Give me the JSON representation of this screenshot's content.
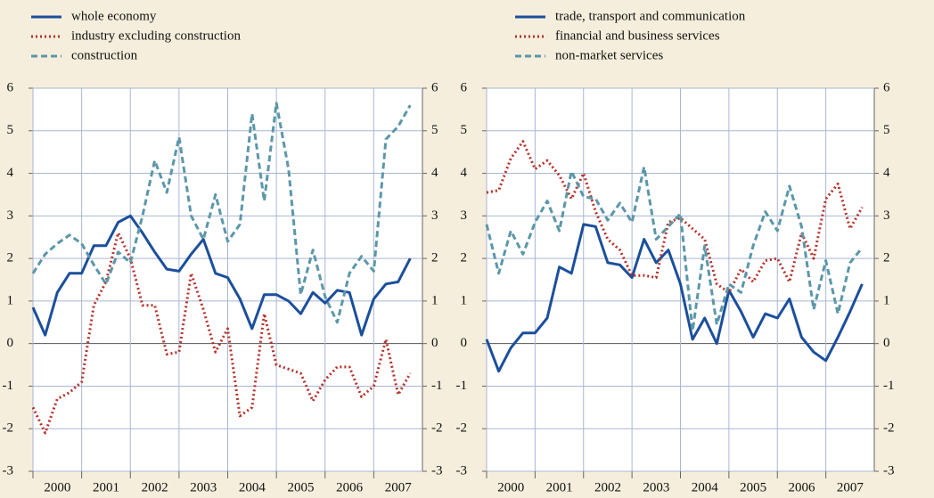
{
  "chart_data": [
    {
      "type": "line",
      "x": [
        2000,
        2000.25,
        2000.5,
        2000.75,
        2001,
        2001.25,
        2001.5,
        2001.75,
        2002,
        2002.25,
        2002.5,
        2002.75,
        2003,
        2003.25,
        2003.5,
        2003.75,
        2004,
        2004.25,
        2004.5,
        2004.75,
        2005,
        2005.25,
        2005.5,
        2005.75,
        2006,
        2006.25,
        2006.5,
        2006.75,
        2007,
        2007.25,
        2007.5,
        2007.75
      ],
      "xlim": [
        2000,
        2008
      ],
      "xticks": [
        2000,
        2001,
        2002,
        2003,
        2004,
        2005,
        2006,
        2007
      ],
      "ylim": [
        -3,
        6
      ],
      "yticks": [
        -3,
        -2,
        -1,
        0,
        1,
        2,
        3,
        4,
        5,
        6
      ],
      "grid": true,
      "series": [
        {
          "name": "whole economy",
          "color": "#1b4f9c",
          "style": "solid",
          "values": [
            0.85,
            0.2,
            1.2,
            1.65,
            1.65,
            2.3,
            2.3,
            2.85,
            3.0,
            2.6,
            2.15,
            1.75,
            1.7,
            2.1,
            2.45,
            1.65,
            1.55,
            1.05,
            0.35,
            1.15,
            1.15,
            1.0,
            0.7,
            1.2,
            0.95,
            1.25,
            1.2,
            0.2,
            1.05,
            1.4,
            1.45,
            2.0
          ]
        },
        {
          "name": "industry excluding construction",
          "color": "#b5322b",
          "style": "dotted",
          "values": [
            -1.5,
            -2.1,
            -1.3,
            -1.15,
            -0.9,
            0.9,
            1.45,
            2.6,
            2.0,
            0.9,
            0.9,
            -0.25,
            -0.2,
            1.65,
            0.8,
            -0.2,
            0.35,
            -1.7,
            -1.5,
            0.7,
            -0.5,
            -0.6,
            -0.7,
            -1.35,
            -0.85,
            -0.55,
            -0.55,
            -1.25,
            -1.0,
            0.1,
            -1.2,
            -0.7
          ]
        },
        {
          "name": "construction",
          "color": "#5b97a8",
          "style": "dashed",
          "values": [
            1.65,
            2.1,
            2.35,
            2.55,
            2.35,
            1.85,
            1.4,
            2.15,
            1.9,
            3.0,
            4.3,
            3.55,
            4.85,
            3.0,
            2.45,
            3.5,
            2.4,
            2.8,
            5.4,
            3.35,
            5.65,
            4.1,
            1.15,
            2.2,
            1.1,
            0.5,
            1.65,
            2.05,
            1.7,
            4.8,
            5.1,
            5.6
          ]
        }
      ]
    },
    {
      "type": "line",
      "x": [
        2000,
        2000.25,
        2000.5,
        2000.75,
        2001,
        2001.25,
        2001.5,
        2001.75,
        2002,
        2002.25,
        2002.5,
        2002.75,
        2003,
        2003.25,
        2003.5,
        2003.75,
        2004,
        2004.25,
        2004.5,
        2004.75,
        2005,
        2005.25,
        2005.5,
        2005.75,
        2006,
        2006.25,
        2006.5,
        2006.75,
        2007,
        2007.25,
        2007.5,
        2007.75
      ],
      "xlim": [
        2000,
        2008
      ],
      "xticks": [
        2000,
        2001,
        2002,
        2003,
        2004,
        2005,
        2006,
        2007
      ],
      "ylim": [
        -3,
        6
      ],
      "yticks": [
        -3,
        -2,
        -1,
        0,
        1,
        2,
        3,
        4,
        5,
        6
      ],
      "grid": true,
      "series": [
        {
          "name": "trade, transport and communication",
          "color": "#1b4f9c",
          "style": "solid",
          "values": [
            0.1,
            -0.65,
            -0.1,
            0.25,
            0.25,
            0.6,
            1.8,
            1.65,
            2.8,
            2.75,
            1.9,
            1.85,
            1.55,
            2.45,
            1.9,
            2.2,
            1.4,
            0.1,
            0.6,
            0.0,
            1.25,
            0.75,
            0.15,
            0.7,
            0.6,
            1.05,
            0.15,
            -0.2,
            -0.4,
            0.15,
            0.75,
            1.4
          ]
        },
        {
          "name": "financial and business services",
          "color": "#b5322b",
          "style": "dotted",
          "values": [
            3.55,
            3.6,
            4.35,
            4.75,
            4.1,
            4.3,
            3.95,
            3.4,
            4.0,
            3.1,
            2.45,
            2.2,
            1.6,
            1.6,
            1.55,
            2.85,
            2.95,
            2.7,
            2.45,
            1.4,
            1.2,
            1.75,
            1.45,
            1.95,
            2.0,
            1.45,
            2.6,
            2.0,
            3.4,
            3.75,
            2.7,
            3.2
          ]
        },
        {
          "name": "non-market services",
          "color": "#5b97a8",
          "style": "dashed",
          "values": [
            2.8,
            1.65,
            2.65,
            2.1,
            2.85,
            3.35,
            2.65,
            4.05,
            3.45,
            3.4,
            2.9,
            3.3,
            2.85,
            4.15,
            2.45,
            2.75,
            3.05,
            0.3,
            2.3,
            0.45,
            1.4,
            1.2,
            2.3,
            3.1,
            2.65,
            3.7,
            2.75,
            0.8,
            1.95,
            0.7,
            1.9,
            2.25
          ]
        }
      ]
    }
  ]
}
